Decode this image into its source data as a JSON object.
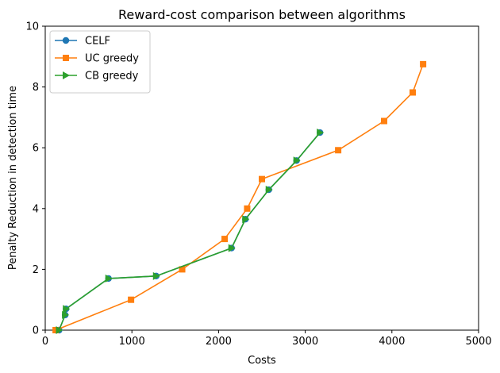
{
  "chart_data": {
    "type": "line",
    "title": "Reward-cost comparison between algorithms",
    "xlabel": "Costs",
    "ylabel": "Penalty Reduction in detection time",
    "xlim": [
      0,
      5000
    ],
    "ylim": [
      0,
      10
    ],
    "xticks": [
      0,
      1000,
      2000,
      3000,
      4000,
      5000
    ],
    "yticks": [
      0,
      2,
      4,
      6,
      8,
      10
    ],
    "grid": false,
    "legend_position": "top-left",
    "series": [
      {
        "name": "CELF",
        "color": "#1f77b4",
        "marker": "circle",
        "x": [
          160,
          230,
          240,
          730,
          1280,
          2150,
          2310,
          2580,
          2900,
          3170
        ],
        "y": [
          0.0,
          0.5,
          0.7,
          1.7,
          1.78,
          2.7,
          3.65,
          4.62,
          5.58,
          6.5
        ]
      },
      {
        "name": "UC greedy",
        "color": "#ff7f0e",
        "marker": "square",
        "x": [
          120,
          990,
          1580,
          2070,
          2330,
          2500,
          3380,
          3910,
          4240,
          4360
        ],
        "y": [
          0.0,
          1.0,
          2.0,
          3.0,
          4.0,
          4.97,
          5.92,
          6.88,
          7.82,
          8.75
        ]
      },
      {
        "name": "CB greedy",
        "color": "#2ca02c",
        "marker": "triangle-right",
        "x": [
          160,
          230,
          240,
          730,
          1280,
          2150,
          2310,
          2580,
          2900,
          3170
        ],
        "y": [
          0.0,
          0.5,
          0.7,
          1.7,
          1.78,
          2.7,
          3.65,
          4.62,
          5.58,
          6.5
        ]
      }
    ]
  }
}
